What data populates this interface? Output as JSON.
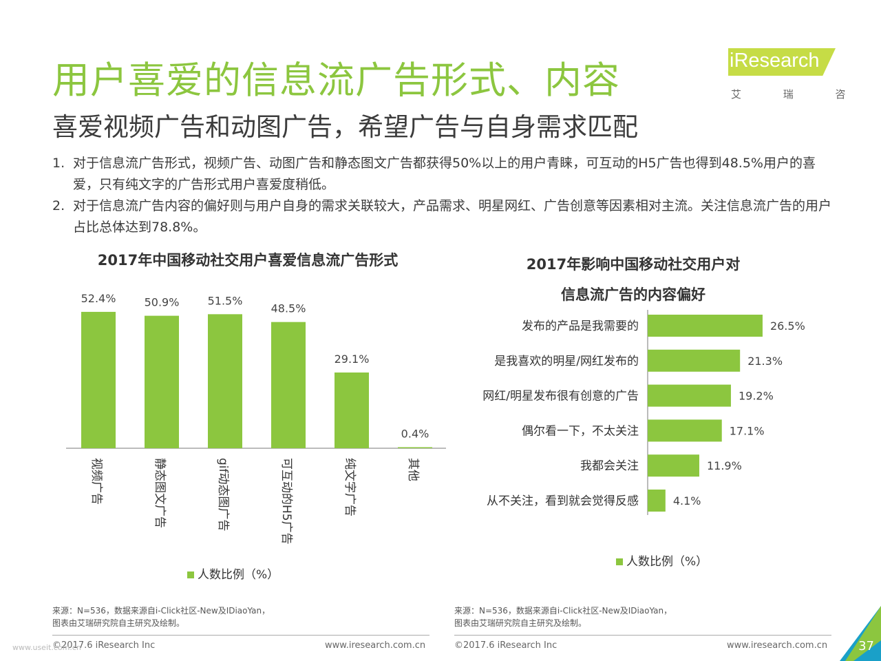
{
  "title": "用户喜爱的信息流广告形式、内容",
  "subtitle": "喜爱视频广告和动图广告，希望广告与自身需求匹配",
  "logo": {
    "brand": "iResearch",
    "sub": "艾 瑞 咨 询",
    "color": "#c6dc46"
  },
  "bullets": [
    {
      "num": "1.",
      "text": "对于信息流广告形式，视频广告、动图广告和静态图文广告都获得50%以上的用户青睐，可互动的H5广告也得到48.5%用户的喜爱，只有纯文字的广告形式用户喜爱度稍低。"
    },
    {
      "num": "2.",
      "text": "对于信息流广告内容的偏好则与用户自身的需求关联较大，产品需求、明星网红、广告创意等因素相对主流。关注信息流广告的用户占比总体达到78.8%。"
    }
  ],
  "chart_data": [
    {
      "type": "bar",
      "title": "2017年中国移动社交用户喜爱信息流广告形式",
      "categories": [
        "视频广告",
        "静态图文广告",
        "gif动态图广告",
        "可互动的H5广告",
        "纯文字广告",
        "其他"
      ],
      "series": [
        {
          "name": "人数比例（%）",
          "values": [
            52.4,
            50.9,
            51.5,
            48.5,
            29.1,
            0.4
          ]
        }
      ],
      "data_labels": [
        "52.4%",
        "50.9%",
        "51.5%",
        "48.5%",
        "29.1%",
        "0.4%"
      ],
      "orientation": "vertical",
      "color": "#8cc63f",
      "legend": "bottom-center",
      "grid": false
    },
    {
      "type": "bar",
      "title": "2017年影响中国移动社交用户对信息流广告的内容偏好",
      "title_lines": [
        "2017年影响中国移动社交用户对",
        "信息流广告的内容偏好"
      ],
      "categories": [
        "发布的产品是我需要的",
        "是我喜欢的明星/网红发布的",
        "网红/明星发布很有创意的广告",
        "偶尔看一下，不太关注",
        "我都会关注",
        "从不关注，看到就会觉得反感"
      ],
      "series": [
        {
          "name": "人数比例（%）",
          "values": [
            26.5,
            21.3,
            19.2,
            17.1,
            11.9,
            4.1
          ]
        }
      ],
      "data_labels": [
        "26.5%",
        "21.3%",
        "19.2%",
        "17.1%",
        "11.9%",
        "4.1%"
      ],
      "orientation": "horizontal",
      "color": "#8cc63f",
      "legend": "bottom-center",
      "grid": false
    }
  ],
  "source_lines": [
    "来源：N=536，数据来源自i-Click社区-New及IDiaoYan，",
    "图表由艾瑞研究院自主研究及绘制。"
  ],
  "footer": {
    "copyright": "©2017.6 iResearch Inc",
    "website": "www.iresearch.com.cn",
    "page": "37"
  },
  "watermark": "www.useit.com.cn"
}
